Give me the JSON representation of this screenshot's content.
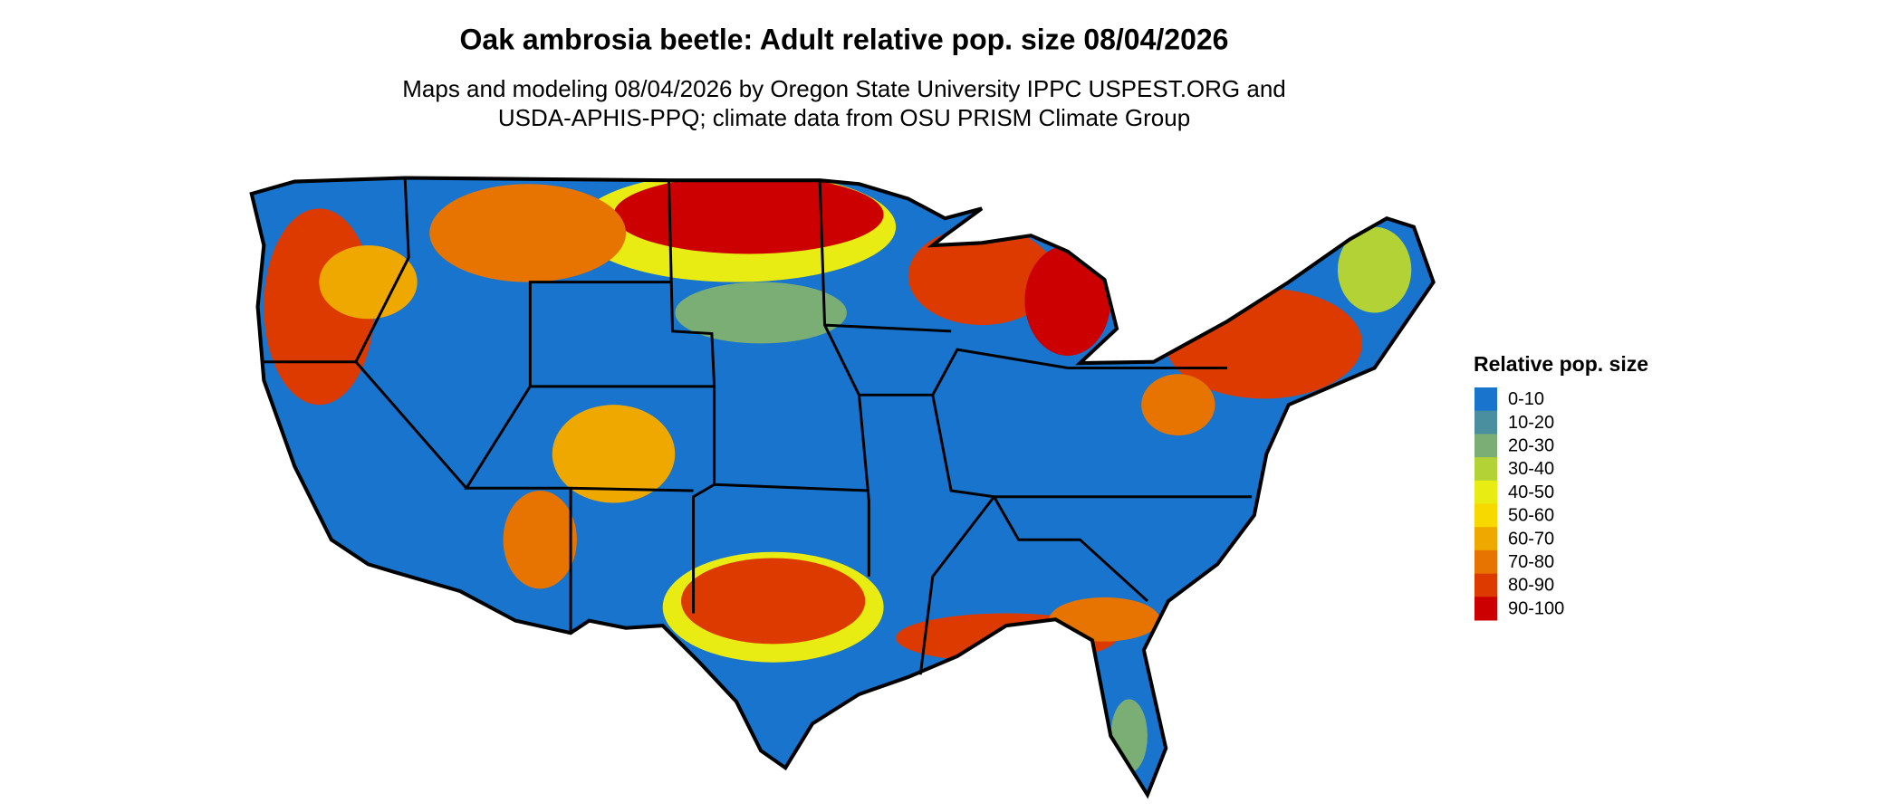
{
  "title": "Oak ambrosia beetle: Adult relative pop. size 08/04/2026",
  "subtitle": [
    "Maps and modeling 08/04/2026 by Oregon State University IPPC USPEST.ORG and",
    "USDA-APHIS-PPQ; climate data from OSU PRISM Climate Group"
  ],
  "legend": {
    "title": "Relative pop. size",
    "items": [
      {
        "label": "0-10",
        "color": "#1874CD"
      },
      {
        "label": "10-20",
        "color": "#4A8FA0"
      },
      {
        "label": "20-30",
        "color": "#7AAE74"
      },
      {
        "label": "30-40",
        "color": "#B2D235"
      },
      {
        "label": "40-50",
        "color": "#E8EC12"
      },
      {
        "label": "50-60",
        "color": "#F7D900"
      },
      {
        "label": "60-70",
        "color": "#EEA800"
      },
      {
        "label": "70-80",
        "color": "#E77400"
      },
      {
        "label": "80-90",
        "color": "#DD3A00"
      },
      {
        "label": "90-100",
        "color": "#CC0000"
      }
    ]
  }
}
